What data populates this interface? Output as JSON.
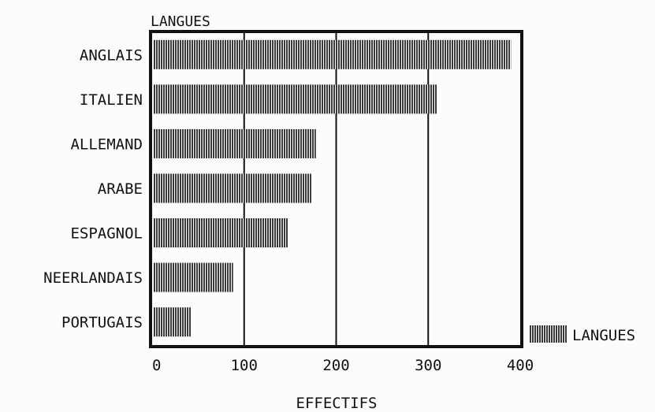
{
  "chart_data": {
    "type": "bar",
    "orientation": "horizontal",
    "title": "LANGUES",
    "xlabel": "EFFECTIFS",
    "ylabel": "",
    "categories": [
      "ANGLAIS",
      "ITALIEN",
      "ALLEMAND",
      "ARABE",
      "ESPAGNOL",
      "NEERLANDAIS",
      "PORTUGAIS"
    ],
    "series": [
      {
        "name": "LANGUES",
        "values": [
          390,
          310,
          178,
          173,
          148,
          88,
          42
        ]
      }
    ],
    "xlim": [
      0,
      400
    ],
    "xticks": [
      0,
      100,
      200,
      300,
      400
    ],
    "grid": "vertical",
    "legend": "bottom-right",
    "colors": {
      "bar": "#3a3a3a",
      "axis": "#111111"
    }
  }
}
